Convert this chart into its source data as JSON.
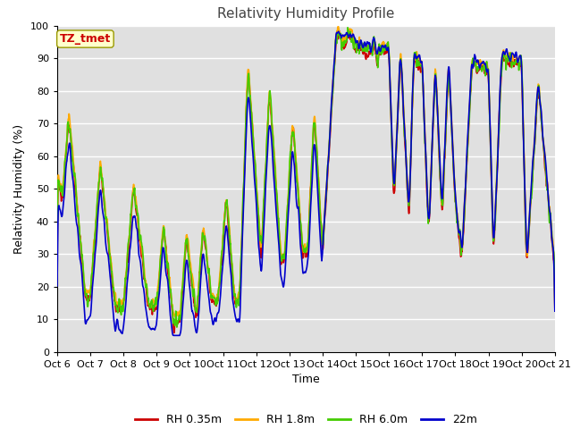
{
  "title": "Relativity Humidity Profile",
  "xlabel": "Time",
  "ylabel": "Relativity Humidity (%)",
  "ylim": [
    0,
    100
  ],
  "yticks": [
    0,
    10,
    20,
    30,
    40,
    50,
    60,
    70,
    80,
    90,
    100
  ],
  "xtick_labels": [
    "Oct 6",
    "Oct 7",
    "Oct 8",
    "Oct 9",
    "Oct 10",
    "Oct 11",
    "Oct 12",
    "Oct 13",
    "Oct 14",
    "Oct 15",
    "Oct 16",
    "Oct 17",
    "Oct 18",
    "Oct 19",
    "Oct 20",
    "Oct 21"
  ],
  "colors": {
    "RH 0.35m": "#cc0000",
    "RH 1.8m": "#ffaa00",
    "RH 6.0m": "#44cc00",
    "22m": "#0000cc"
  },
  "legend_labels": [
    "RH 0.35m",
    "RH 1.8m",
    "RH 6.0m",
    "22m"
  ],
  "annotation_text": "TZ_tmet",
  "annotation_color": "#cc0000",
  "annotation_bg": "#ffffcc",
  "bg_color": "#e0e0e0",
  "plot_bg": "#e0e0e0",
  "fig_bg": "#ffffff",
  "grid_color": "#ffffff",
  "title_fontsize": 11,
  "axis_fontsize": 9,
  "tick_fontsize": 8,
  "linewidth": 1.2
}
